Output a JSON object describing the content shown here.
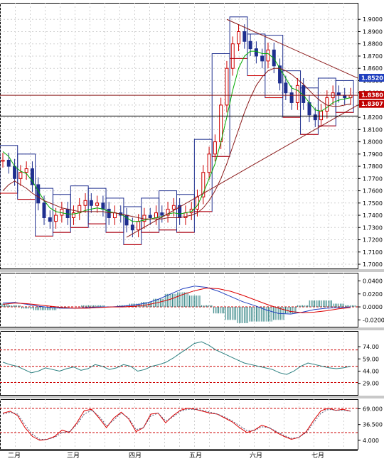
{
  "chart_data": [
    {
      "type": "line",
      "panel": "price",
      "title": "",
      "ylim": [
        1.7,
        1.91
      ],
      "y_ticks": [
        "1.9000",
        "1.8900",
        "1.8800",
        "1.8700",
        "1.8600",
        "1.8500",
        "1.8400",
        "1.8300",
        "1.8200",
        "1.8100",
        "1.8000",
        "1.7900",
        "1.7800",
        "1.7700",
        "1.7600",
        "1.7500",
        "1.7400",
        "1.7300",
        "1.7200",
        "1.7100",
        "1.7000"
      ],
      "x_month_labels": [
        "二月",
        "三月",
        "四月",
        "五月",
        "六月",
        "七月"
      ],
      "series": [
        {
          "values": [
            1.785,
            1.78,
            1.77,
            1.775,
            1.778,
            1.765,
            1.75,
            1.738,
            1.735,
            1.74,
            1.745,
            1.738,
            1.742,
            1.748,
            1.752,
            1.748,
            1.75,
            1.745,
            1.738,
            1.742,
            1.74,
            1.732,
            1.728,
            1.735,
            1.74,
            1.738,
            1.742,
            1.74,
            1.745,
            1.748,
            1.738,
            1.742,
            1.745,
            1.755,
            1.775,
            1.79,
            1.8,
            1.83,
            1.86,
            1.88,
            1.89,
            1.882,
            1.876,
            1.87,
            1.866,
            1.875,
            1.862,
            1.848,
            1.84,
            1.832,
            1.846,
            1.832,
            1.822,
            1.818,
            1.825,
            1.836,
            1.84,
            1.838,
            1.836,
            1.838
          ]
        },
        {
          "values": [
            1.792,
            1.788,
            1.78,
            1.776,
            1.774,
            1.768,
            1.76,
            1.752,
            1.746,
            1.743,
            1.742,
            1.741,
            1.741,
            1.742,
            1.744,
            1.745,
            1.746,
            1.745,
            1.743,
            1.742,
            1.741,
            1.738,
            1.735,
            1.735,
            1.736,
            1.737,
            1.738,
            1.739,
            1.741,
            1.742,
            1.741,
            1.742,
            1.743,
            1.748,
            1.758,
            1.77,
            1.782,
            1.8,
            1.82,
            1.842,
            1.86,
            1.87,
            1.874,
            1.874,
            1.872,
            1.872,
            1.868,
            1.86,
            1.852,
            1.844,
            1.842,
            1.838,
            1.832,
            1.826,
            1.825,
            1.828,
            1.832,
            1.834,
            1.835,
            1.836
          ]
        },
        {
          "values": [
            1.76,
            1.765,
            1.768,
            1.765,
            1.762,
            1.758,
            1.755,
            1.752,
            1.75,
            1.748,
            1.746,
            1.745,
            1.744,
            1.743,
            1.743,
            1.743,
            1.743,
            1.743,
            1.742,
            1.742,
            1.741,
            1.74,
            1.739,
            1.738,
            1.737,
            1.737,
            1.737,
            1.737,
            1.738,
            1.738,
            1.738,
            1.739,
            1.74,
            1.742,
            1.746,
            1.752,
            1.76,
            1.77,
            1.782,
            1.796,
            1.81,
            1.824,
            1.836,
            1.846,
            1.853,
            1.858,
            1.86,
            1.86,
            1.858,
            1.855,
            1.851,
            1.847,
            1.842,
            1.837,
            1.833,
            1.83,
            1.829,
            1.829,
            1.83,
            1.831
          ]
        }
      ],
      "marker_lines": [
        1.838,
        1.821
      ],
      "badges": [
        {
          "label": "1.8520",
          "color": "#1f3fbf"
        },
        {
          "label": "1.8380",
          "color": "#c00000"
        },
        {
          "label": "1.8307",
          "color": "#c00000"
        }
      ]
    },
    {
      "type": "line",
      "panel": "macd",
      "ylim": [
        -0.024,
        0.046
      ],
      "y_ticks": [
        "0.0400",
        "0.0200",
        "0.0000",
        "-0.0200"
      ],
      "series": [
        {
          "color": "#1f3fbf",
          "values": [
            0.006,
            0.007,
            0.004,
            0.001,
            -0.001,
            -0.002,
            -0.002,
            -0.001,
            0.0,
            0.0,
            0.001,
            0.003,
            0.006,
            0.012,
            0.02,
            0.028,
            0.032,
            0.03,
            0.024,
            0.016,
            0.008,
            0.002,
            -0.005,
            -0.01,
            -0.011,
            -0.008,
            -0.004,
            -0.002,
            -0.001,
            0.0
          ]
        },
        {
          "color": "#dd0000",
          "values": [
            0.004,
            0.006,
            0.005,
            0.003,
            0.001,
            -0.001,
            -0.002,
            -0.002,
            -0.001,
            0.0,
            0.0,
            0.001,
            0.003,
            0.007,
            0.012,
            0.019,
            0.025,
            0.029,
            0.028,
            0.024,
            0.018,
            0.011,
            0.004,
            -0.002,
            -0.007,
            -0.009,
            -0.008,
            -0.006,
            -0.003,
            -0.001
          ]
        }
      ]
    },
    {
      "type": "line",
      "panel": "rsi",
      "ylim": [
        20,
        88
      ],
      "y_ticks": [
        "74.00",
        "59.00",
        "44.00",
        "29.00"
      ],
      "reference_levels": [
        70,
        50,
        30
      ],
      "series": [
        {
          "color": "#2a7f7f",
          "values": [
            55,
            52,
            50,
            46,
            42,
            44,
            48,
            46,
            44,
            47,
            49,
            45,
            47,
            52,
            50,
            46,
            48,
            52,
            50,
            44,
            46,
            50,
            52,
            55,
            60,
            66,
            72,
            78,
            80,
            76,
            70,
            66,
            62,
            58,
            54,
            52,
            50,
            48,
            46,
            42,
            40,
            44,
            50,
            54,
            52,
            50,
            48,
            47,
            48,
            50
          ]
        }
      ]
    },
    {
      "type": "line",
      "panel": "stochastic",
      "ylim": [
        -5,
        80
      ],
      "y_ticks": [
        "69.000",
        "36.500",
        "4.000"
      ],
      "reference_levels": [
        70,
        20
      ],
      "series": [
        {
          "color": "#dd0000",
          "values": [
            60,
            64,
            55,
            30,
            12,
            4,
            6,
            12,
            25,
            20,
            40,
            65,
            68,
            50,
            30,
            50,
            62,
            48,
            22,
            30,
            58,
            60,
            40,
            55,
            66,
            70,
            68,
            64,
            60,
            58,
            50,
            42,
            30,
            20,
            25,
            35,
            30,
            20,
            12,
            6,
            10,
            22,
            45,
            65,
            70,
            66,
            68,
            64
          ]
        },
        {
          "color": "#555577",
          "values": [
            58,
            62,
            58,
            36,
            16,
            6,
            6,
            10,
            20,
            22,
            36,
            58,
            66,
            54,
            34,
            46,
            60,
            50,
            26,
            30,
            54,
            60,
            44,
            52,
            64,
            68,
            68,
            66,
            62,
            58,
            52,
            44,
            34,
            24,
            24,
            32,
            30,
            22,
            14,
            8,
            10,
            20,
            40,
            60,
            68,
            66,
            66,
            64
          ]
        }
      ]
    }
  ]
}
